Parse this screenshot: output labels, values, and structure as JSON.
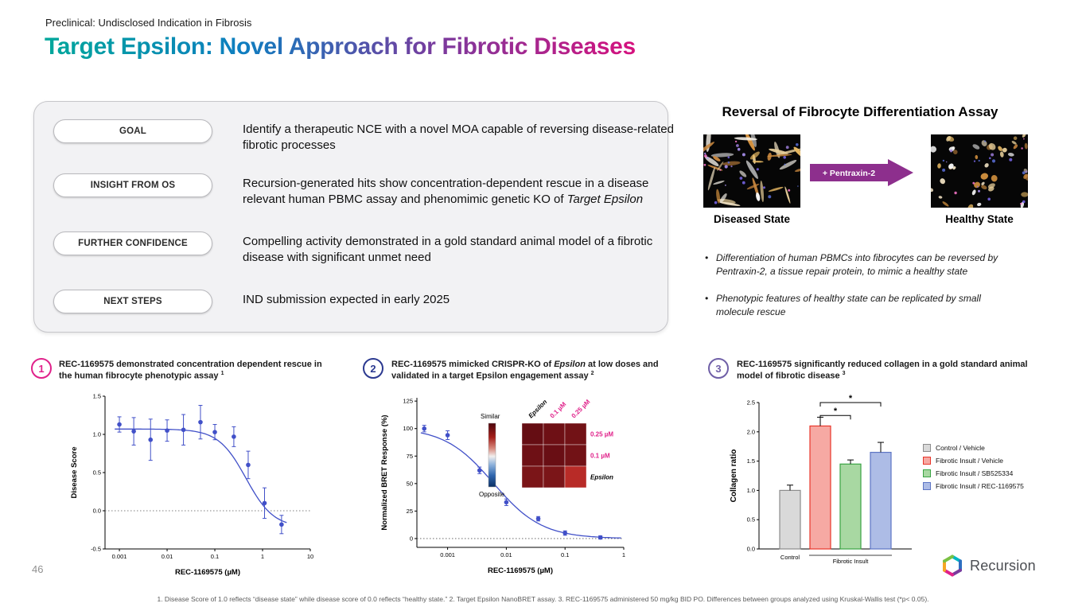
{
  "slide": {
    "kicker": "Preclinical: Undisclosed Indication in Fibrosis",
    "title": "Target Epsilon: Novel Approach for Fibrotic Diseases",
    "page_number": "46",
    "footnote": "1. Disease Score of 1.0 reflects “disease state” while disease score of 0.0 reflects “healthy state.”  2. Target Epsilon NanoBRET assay.  3. REC-1169575 administered 50 mg/kg BID PO. Differences between groups analyzed using Kruskal-Wallis test (*p< 0.05)."
  },
  "brand": {
    "title_gradient": [
      "#00a79b",
      "#0e7ec0",
      "#7a3a9d",
      "#d6117e"
    ]
  },
  "summary_box": {
    "rows": [
      {
        "label": "GOAL",
        "text": "Identify a therapeutic NCE with a novel MOA capable of reversing disease-related fibrotic processes",
        "text_italic": ""
      },
      {
        "label": "INSIGHT FROM OS",
        "text": "Recursion-generated hits show concentration-dependent rescue in a disease relevant human PBMC assay and phenomimic genetic KO of ",
        "text_italic": "Target Epsilon"
      },
      {
        "label": "FURTHER CONFIDENCE",
        "text": "Compelling activity demonstrated in a gold standard animal model of a fibrotic disease with significant unmet need",
        "text_italic": ""
      },
      {
        "label": "NEXT STEPS",
        "text": "IND submission expected in early 2025",
        "text_italic": ""
      }
    ]
  },
  "assay": {
    "title": "Reversal of Fibrocyte Differentiation Assay",
    "arrow_label": "+ Pentraxin-2",
    "arrow_color": "#8d2f8d",
    "diseased_label": "Diseased State",
    "healthy_label": "Healthy State",
    "bullets": [
      "Differentiation of human PBMCs into fibrocytes can be reversed by Pentraxin-2, a tissue repair protein, to mimic a healthy state",
      "Phenotypic features of healthy state can be replicated by small molecule rescue"
    ]
  },
  "panels": [
    {
      "number": "1",
      "color": "#e0218a",
      "heading_pre": "REC-1169575 demonstrated concentration dependent rescue in the human fibrocyte phenotypic assay ",
      "heading_italic": "",
      "heading_post": "",
      "footnote_marker": "1"
    },
    {
      "number": "2",
      "color": "#2b3990",
      "heading_pre": "REC-1169575 mimicked CRISPR-KO of ",
      "heading_italic": "Epsilon",
      "heading_post": " at low doses and validated in a target Epsilon engagement assay ",
      "footnote_marker": "2"
    },
    {
      "number": "3",
      "color": "#6f5fa7",
      "heading_pre": "REC-1169575 significantly reduced collagen in a gold standard animal model of fibrotic disease ",
      "heading_italic": "",
      "heading_post": "",
      "footnote_marker": "3"
    }
  ],
  "chart_data": [
    {
      "id": "fibrocyte_dose_response",
      "type": "scatter",
      "xlabel": "REC-1169575 (µM)",
      "ylabel": "Disease Score",
      "x_scale": "log",
      "xlim": [
        0.0005,
        10
      ],
      "ylim": [
        -0.5,
        1.5
      ],
      "xticks": [
        {
          "v": 0.001,
          "label": "0.001"
        },
        {
          "v": 0.01,
          "label": "0.01"
        },
        {
          "v": 0.1,
          "label": "0.1"
        },
        {
          "v": 1,
          "label": "1"
        },
        {
          "v": 10,
          "label": "10"
        }
      ],
      "yticks": [
        {
          "v": -0.5,
          "label": "-0.5"
        },
        {
          "v": 0,
          "label": "0.0"
        },
        {
          "v": 0.5,
          "label": "0.5"
        },
        {
          "v": 1,
          "label": "1.0"
        },
        {
          "v": 1.5,
          "label": "1.5"
        }
      ],
      "ref_line_y": 0,
      "point_color": "#4150c8",
      "curve": {
        "top": 1.07,
        "bottom": -0.22,
        "ec50": 0.45,
        "hill": 1.5
      },
      "curve_range": [
        0.0008,
        3.2
      ],
      "points": [
        {
          "x": 0.001,
          "y": 1.13,
          "err": 0.1
        },
        {
          "x": 0.002,
          "y": 1.04,
          "err": 0.18
        },
        {
          "x": 0.0045,
          "y": 0.93,
          "err": 0.27
        },
        {
          "x": 0.01,
          "y": 1.05,
          "err": 0.14
        },
        {
          "x": 0.022,
          "y": 1.06,
          "err": 0.2
        },
        {
          "x": 0.05,
          "y": 1.16,
          "err": 0.22
        },
        {
          "x": 0.1,
          "y": 1.03,
          "err": 0.1
        },
        {
          "x": 0.25,
          "y": 0.97,
          "err": 0.13
        },
        {
          "x": 0.5,
          "y": 0.6,
          "err": 0.18
        },
        {
          "x": 1.1,
          "y": 0.1,
          "err": 0.2
        },
        {
          "x": 2.5,
          "y": -0.18,
          "err": 0.12
        }
      ]
    },
    {
      "id": "bret_dose_response",
      "type": "scatter",
      "xlabel": "REC-1169575 (µM)",
      "ylabel": "Normalized BRET Response (%)",
      "x_scale": "log",
      "xlim": [
        0.0003,
        1
      ],
      "ylim": [
        -8,
        128
      ],
      "xticks": [
        {
          "v": 0.001,
          "label": "0.001"
        },
        {
          "v": 0.01,
          "label": "0.01"
        },
        {
          "v": 0.1,
          "label": "0.1"
        },
        {
          "v": 1,
          "label": "1"
        }
      ],
      "yticks": [
        {
          "v": 0,
          "label": "0"
        },
        {
          "v": 25,
          "label": "25"
        },
        {
          "v": 50,
          "label": "50"
        },
        {
          "v": 75,
          "label": "75"
        },
        {
          "v": 100,
          "label": "100"
        },
        {
          "v": 125,
          "label": "125"
        }
      ],
      "ref_line_y": 0,
      "point_color": "#4150c8",
      "curve": {
        "top": 101,
        "bottom": 0,
        "ec50": 0.006,
        "hill": 1.05
      },
      "curve_range": [
        0.00035,
        0.9
      ],
      "points": [
        {
          "x": 0.0004,
          "y": 100,
          "err": 3
        },
        {
          "x": 0.001,
          "y": 94,
          "err": 4
        },
        {
          "x": 0.0035,
          "y": 62,
          "err": 3
        },
        {
          "x": 0.01,
          "y": 33,
          "err": 3
        },
        {
          "x": 0.035,
          "y": 18,
          "err": 2
        },
        {
          "x": 0.1,
          "y": 5,
          "err": 2
        },
        {
          "x": 0.4,
          "y": 1,
          "err": 1.5
        }
      ]
    },
    {
      "id": "epsilon_similarity_heatmap",
      "type": "heatmap",
      "col_labels": [
        {
          "text": "Epsilon",
          "color": "#000000",
          "italic": true
        },
        {
          "text": "0.1 µM",
          "color": "#e0218a",
          "italic": false
        },
        {
          "text": "0.25 µM",
          "color": "#e0218a",
          "italic": false
        }
      ],
      "row_labels": [
        {
          "text": "0.25 µM",
          "color": "#e0218a",
          "italic": false
        },
        {
          "text": "0.1 µM",
          "color": "#e0218a",
          "italic": false
        },
        {
          "text": "Epsilon",
          "color": "#000000",
          "italic": true
        }
      ],
      "colorbar": {
        "top_label": "Similar",
        "bottom_label": "Opposite"
      },
      "values": [
        [
          0.97,
          0.95,
          0.94
        ],
        [
          0.95,
          0.96,
          0.94
        ],
        [
          0.92,
          0.92,
          0.78
        ]
      ]
    },
    {
      "id": "collagen_ratio",
      "type": "bar",
      "ylabel": "Collagen ratio",
      "ylim": [
        0,
        2.5
      ],
      "yticks": [
        {
          "v": 0,
          "label": "0.0"
        },
        {
          "v": 0.5,
          "label": "0.5"
        },
        {
          "v": 1,
          "label": "1.0"
        },
        {
          "v": 1.5,
          "label": "1.5"
        },
        {
          "v": 2,
          "label": "2.0"
        },
        {
          "v": 2.5,
          "label": "2.5"
        }
      ],
      "series": [
        {
          "name": "Control / Vehicle",
          "value": 1.0,
          "err": 0.09,
          "fill": "#d9d9d9",
          "edge": "#8c8c8c"
        },
        {
          "name": "Fibrotic Insult / Vehicle",
          "value": 2.1,
          "err": 0.15,
          "fill": "#f6a9a3",
          "edge": "#e8352a"
        },
        {
          "name": "Fibrotic Insult / SB525334",
          "value": 1.45,
          "err": 0.07,
          "fill": "#a8d8a2",
          "edge": "#3aa344"
        },
        {
          "name": "Fibrotic Insult / REC-1169575",
          "value": 1.65,
          "err": 0.17,
          "fill": "#adbce6",
          "edge": "#5d75c4"
        }
      ],
      "group_labels": [
        {
          "label": "Control",
          "bars": [
            0
          ]
        },
        {
          "label": "Fibrotic Insult",
          "bars": [
            1,
            2,
            3
          ]
        }
      ],
      "significance": [
        {
          "from": 1,
          "to": 2,
          "y": 2.28,
          "label": "*"
        },
        {
          "from": 1,
          "to": 3,
          "y": 2.5,
          "label": "*"
        }
      ]
    }
  ],
  "footer": {
    "logo_text": "Recursion",
    "logo_colors": [
      "#00b8c4",
      "#2d6fc1",
      "#7a3a9d",
      "#e0218a",
      "#f5a623",
      "#7ac143"
    ]
  }
}
